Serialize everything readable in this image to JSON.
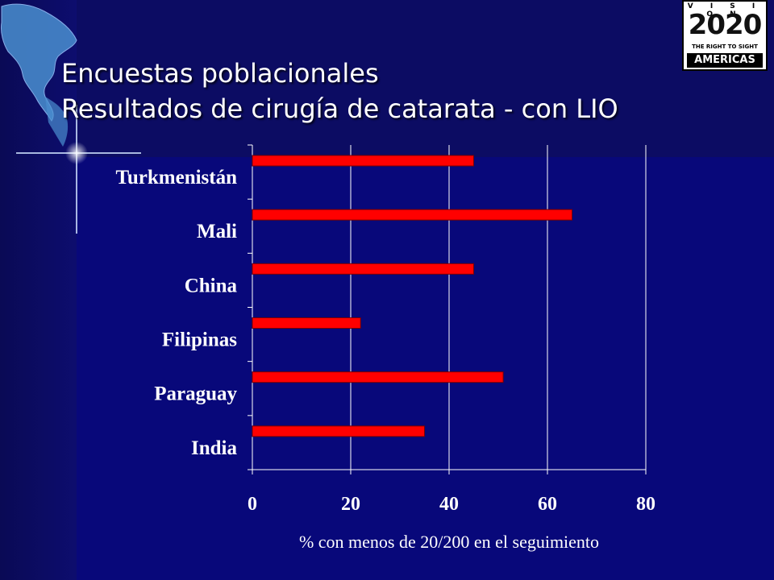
{
  "slide": {
    "title_line1": "Encuestas poblacionales",
    "title_line2": "Resultados de cirugía de catarata - con LIO",
    "background_color": "#08087a",
    "accent_color": "#ff0000"
  },
  "logo": {
    "line1": "V I S I O N",
    "year": "2020",
    "tagline": "THE RIGHT TO SIGHT",
    "region": "AMERICAS"
  },
  "decorations": [
    "americas-map-icon",
    "sparkle-star-icon"
  ],
  "chart_data": {
    "type": "bar",
    "orientation": "horizontal",
    "categories": [
      "Turkmenistán",
      "Mali",
      "China",
      "Filipinas",
      "Paraguay",
      "India"
    ],
    "values": [
      45,
      65,
      45,
      22,
      51,
      35
    ],
    "xlabel": "% con menos de 20/200 en el seguimiento",
    "ylabel": "",
    "xlim": [
      0,
      80
    ],
    "xticks": [
      0,
      20,
      40,
      60,
      80
    ],
    "grid": true,
    "bar_color": "#ff0000",
    "legend": "none"
  }
}
